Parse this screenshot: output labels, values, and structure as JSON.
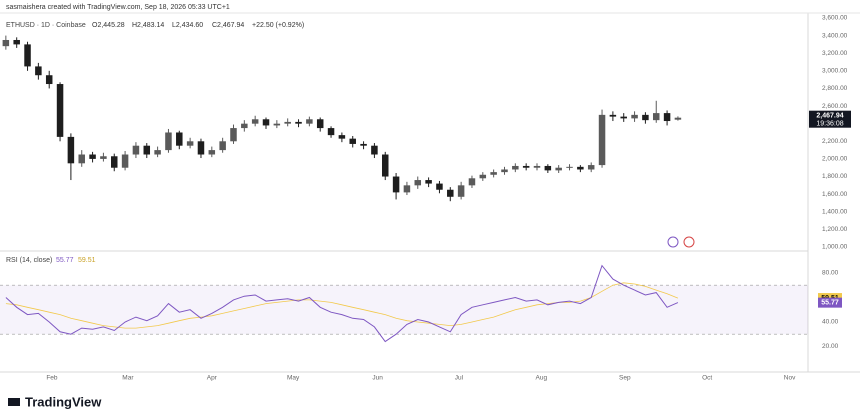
{
  "header": "sasmaishera created with TradingView.com, Sep 18, 2026 05:33 UTC+1",
  "footer": "TradingView",
  "chart_data": [
    {
      "type": "candlestick",
      "legend_symbol": "ETHUSD · 1D · Coinbase",
      "legend_values": [
        "O2,445.28",
        "H2,483.14",
        "L2,434.60",
        "C2,467.94",
        "+22.50 (+0.92%)"
      ],
      "last_label": "2,467.94",
      "countdown": "19:36:08",
      "up_color": "#5a5a5a",
      "down_color": "#1e1e1e",
      "open": [
        3280,
        3350,
        3300,
        3050,
        2950,
        2850,
        2250,
        1950,
        2050,
        2000,
        2030,
        1900,
        2050,
        2150,
        2050,
        2100,
        2300,
        2150,
        2200,
        2050,
        2100,
        2200,
        2350,
        2400,
        2450,
        2380,
        2400,
        2420,
        2400,
        2450,
        2350,
        2270,
        2230,
        2170,
        2150,
        2050,
        1800,
        1620,
        1700,
        1760,
        1720,
        1650,
        1570,
        1700,
        1780,
        1820,
        1850,
        1880,
        1920,
        1900,
        1920,
        1870,
        1900,
        1910,
        1880,
        1930,
        2500,
        2480,
        2460,
        2500,
        2440,
        2520,
        2445.28
      ],
      "high": [
        3400,
        3380,
        3330,
        3090,
        3000,
        2870,
        2290,
        2100,
        2080,
        2070,
        2060,
        2090,
        2190,
        2180,
        2140,
        2340,
        2320,
        2240,
        2230,
        2140,
        2240,
        2390,
        2440,
        2490,
        2470,
        2440,
        2460,
        2450,
        2480,
        2470,
        2370,
        2300,
        2260,
        2200,
        2180,
        2080,
        1840,
        1740,
        1800,
        1790,
        1750,
        1680,
        1740,
        1810,
        1850,
        1880,
        1910,
        1950,
        1950,
        1950,
        1940,
        1930,
        1940,
        1930,
        1960,
        2560,
        2540,
        2520,
        2540,
        2530,
        2660,
        2550,
        2483.14
      ],
      "low": [
        3240,
        3260,
        3000,
        2900,
        2800,
        2200,
        1760,
        1910,
        1960,
        1970,
        1860,
        1870,
        2010,
        2010,
        2020,
        2070,
        2110,
        2120,
        2010,
        2020,
        2070,
        2170,
        2310,
        2370,
        2340,
        2350,
        2370,
        2360,
        2370,
        2310,
        2240,
        2190,
        2130,
        2110,
        2010,
        1760,
        1540,
        1590,
        1660,
        1680,
        1610,
        1520,
        1540,
        1670,
        1750,
        1790,
        1820,
        1850,
        1870,
        1870,
        1840,
        1840,
        1870,
        1850,
        1850,
        1900,
        2430,
        2420,
        2420,
        2400,
        2410,
        2380,
        2434.6
      ],
      "close": [
        3350,
        3300,
        3050,
        2950,
        2850,
        2250,
        1950,
        2050,
        2000,
        2030,
        1900,
        2050,
        2150,
        2050,
        2100,
        2300,
        2150,
        2200,
        2050,
        2100,
        2200,
        2350,
        2400,
        2450,
        2380,
        2400,
        2420,
        2400,
        2450,
        2350,
        2270,
        2230,
        2170,
        2150,
        2050,
        1800,
        1620,
        1700,
        1760,
        1720,
        1650,
        1570,
        1700,
        1780,
        1820,
        1850,
        1880,
        1920,
        1900,
        1920,
        1870,
        1900,
        1910,
        1880,
        1930,
        2500,
        2480,
        2460,
        2500,
        2440,
        2520,
        2430,
        2467.94
      ],
      "xlim": [
        -0.54,
        74
      ],
      "ylim": [
        966,
        3645
      ],
      "yticks": [
        {
          "value": 3600,
          "label": "3,600.00"
        },
        {
          "value": 3400,
          "label": "3,400.00"
        },
        {
          "value": 3200,
          "label": "3,200.00"
        },
        {
          "value": 3000,
          "label": "3,000.00"
        },
        {
          "value": 2800,
          "label": "2,800.00"
        },
        {
          "value": 2600,
          "label": "2,600.00"
        },
        {
          "value": 2200,
          "label": "2,200.00"
        },
        {
          "value": 2000,
          "label": "2,000.00"
        },
        {
          "value": 1800,
          "label": "1,800.00"
        },
        {
          "value": 1600,
          "label": "1,600.00"
        },
        {
          "value": 1400,
          "label": "1,400.00"
        },
        {
          "value": 1200,
          "label": "1,200.00"
        },
        {
          "value": 1000,
          "label": "1,000.00"
        }
      ]
    },
    {
      "type": "line",
      "series": [
        {
          "name": "RSI (14, close)",
          "color": "#7e57c2",
          "values": [
            60,
            52,
            46,
            47,
            40,
            32,
            30,
            35,
            34,
            36,
            33,
            40,
            44,
            41,
            45,
            55,
            48,
            50,
            43,
            47,
            52,
            58,
            61,
            62,
            57,
            58,
            59,
            57,
            60,
            52,
            48,
            46,
            43,
            42,
            36,
            24,
            30,
            38,
            42,
            40,
            36,
            32,
            46,
            52,
            54,
            56,
            58,
            60,
            57,
            58,
            54,
            56,
            57,
            55,
            60,
            86,
            75,
            70,
            66,
            62,
            64,
            52,
            55.77
          ]
        },
        {
          "color": "#f2c94c",
          "values": [
            55,
            54,
            52,
            50,
            48,
            46,
            43,
            41,
            39,
            37,
            36,
            35,
            35,
            36,
            37,
            39,
            41,
            43,
            44,
            45,
            47,
            49,
            51,
            53,
            55,
            56,
            57,
            58,
            58,
            57,
            56,
            54,
            52,
            50,
            48,
            46,
            43,
            41,
            40,
            39,
            38,
            37,
            38,
            40,
            42,
            44,
            47,
            50,
            52,
            54,
            55,
            56,
            56,
            57,
            60,
            65,
            70,
            72,
            71,
            69,
            66,
            63,
            59.51
          ]
        }
      ],
      "band": [
        30,
        70
      ],
      "xlim": [
        -0.54,
        74
      ],
      "ylim": [
        0.8,
        97.1
      ],
      "yticks": [
        {
          "value": 80,
          "label": "80.00"
        },
        {
          "value": 60,
          "label": "60.00"
        },
        {
          "value": 40,
          "label": "40.00"
        },
        {
          "value": 20,
          "label": "20.00"
        }
      ],
      "xticks": [
        {
          "value": 4.25,
          "label": "Feb"
        },
        {
          "value": 11.26,
          "label": "Mar"
        },
        {
          "value": 19.0,
          "label": "Apr"
        },
        {
          "value": 26.5,
          "label": "May"
        },
        {
          "value": 34.3,
          "label": "Jun"
        },
        {
          "value": 41.8,
          "label": "Jul"
        },
        {
          "value": 49.4,
          "label": "Aug"
        },
        {
          "value": 57.1,
          "label": "Sep"
        },
        {
          "value": 64.7,
          "label": "Oct"
        },
        {
          "value": 72.3,
          "label": "Nov"
        }
      ]
    }
  ]
}
